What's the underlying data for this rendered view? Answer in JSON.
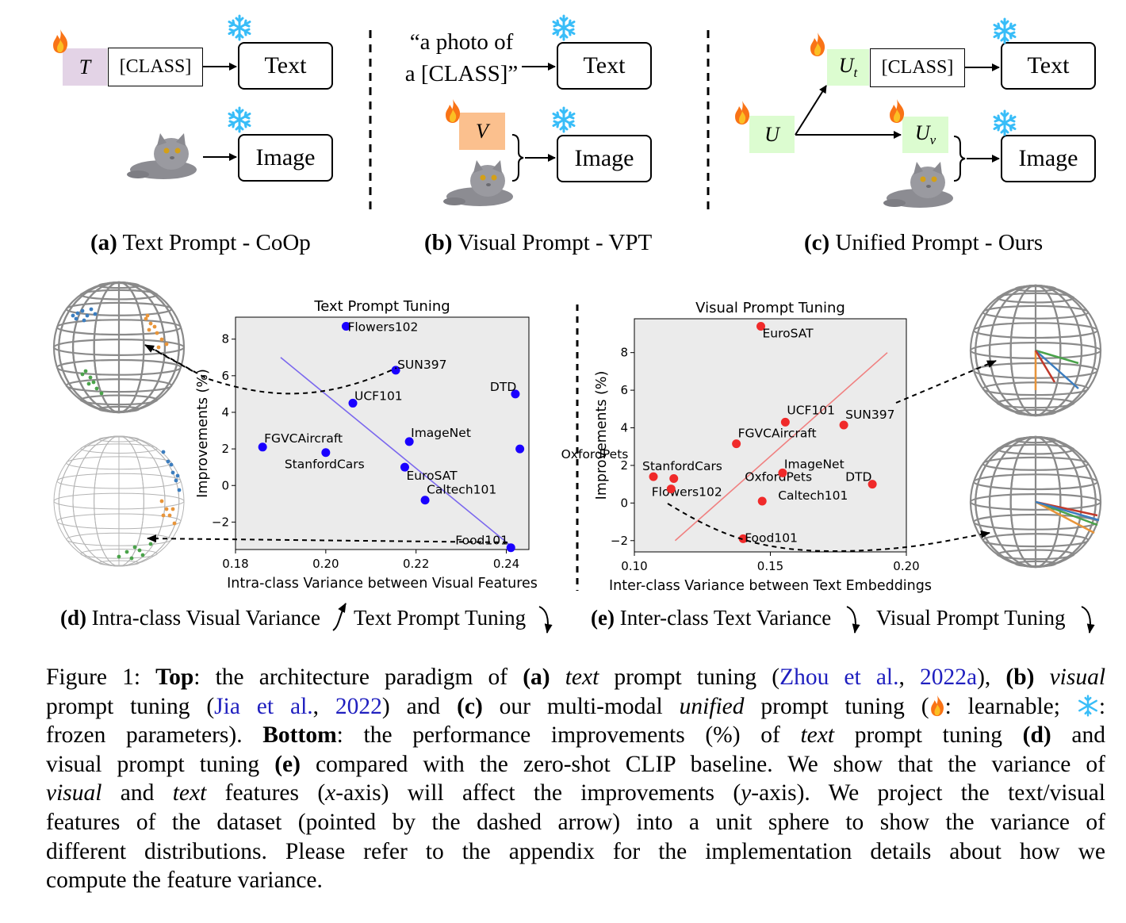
{
  "top": {
    "a": {
      "prompt": "T",
      "class": "[CLASS]",
      "text": "Text",
      "image": "Image",
      "label_bold": "(a)",
      "label": " Text Prompt - CoOp"
    },
    "b": {
      "quote_line1": "“a photo of",
      "quote_line2": "a [CLASS]”",
      "prompt": "V",
      "text": "Text",
      "image": "Image",
      "label_bold": "(b)",
      "label": " Visual Prompt - VPT"
    },
    "c": {
      "prompt_u": "U",
      "prompt_ut": "U",
      "prompt_ut_sub": "t",
      "prompt_uv": "U",
      "prompt_uv_sub": "v",
      "class": "[CLASS]",
      "text": "Text",
      "image": "Image",
      "label_bold": "(c)",
      "label": " Unified Prompt - Ours"
    }
  },
  "bottom": {
    "d_label_bold": "(d)",
    "d_label": " Intra-class Visual Variance",
    "d_tuning": "Text Prompt Tuning",
    "e_label_bold": "(e)",
    "e_label": " Inter-class Text Variance",
    "e_tuning": "Visual Prompt Tuning"
  },
  "colors": {
    "flame": "#f97316",
    "snow": "#38bdf8",
    "text_prompt": "#e3d3e6",
    "visual_prompt": "#fbc08e",
    "unified_prompt": "#dcfcd0",
    "plot_bg": "#ebebeb",
    "blue_series": "#1a00ff",
    "red_series": "#f02a2a",
    "blue_fit": "#7b68ee",
    "red_fit": "#f08080"
  },
  "chart_data": [
    {
      "type": "scatter",
      "title": "Text Prompt Tuning",
      "xlabel": "Intra-class Variance between Visual Features",
      "ylabel": "Improvements (%)",
      "xlim": [
        0.18,
        0.245
      ],
      "ylim": [
        -3.5,
        9.2
      ],
      "xticks": [
        "0.18",
        "0.20",
        "0.22",
        "0.24"
      ],
      "yticks": [
        "−2",
        "0",
        "2",
        "4",
        "6",
        "8"
      ],
      "xtick_values": [
        0.18,
        0.2,
        0.22,
        0.24
      ],
      "ytick_values": [
        -2,
        0,
        2,
        4,
        6,
        8
      ],
      "grid": false,
      "points": [
        {
          "name": "Flowers102",
          "x": 0.2045,
          "y": 8.7
        },
        {
          "name": "SUN397",
          "x": 0.2155,
          "y": 6.3
        },
        {
          "name": "UCF101",
          "x": 0.206,
          "y": 4.5
        },
        {
          "name": "DTD",
          "x": 0.242,
          "y": 5.0
        },
        {
          "name": "ImageNet",
          "x": 0.2185,
          "y": 2.4
        },
        {
          "name": "FGVCAircraft",
          "x": 0.186,
          "y": 2.1
        },
        {
          "name": "StanfordCars",
          "x": 0.2,
          "y": 1.8
        },
        {
          "name": "OxfordPets",
          "x": 0.243,
          "y": 2.0
        },
        {
          "name": "EuroSAT",
          "x": 0.2175,
          "y": 1.0
        },
        {
          "name": "Caltech101",
          "x": 0.222,
          "y": -0.8
        },
        {
          "name": "Food101",
          "x": 0.241,
          "y": -3.4
        }
      ],
      "fit_line": {
        "x": [
          0.19,
          0.241
        ],
        "y": [
          7.0,
          -3.3
        ]
      }
    },
    {
      "type": "scatter",
      "title": "Visual Prompt Tuning",
      "xlabel": "Inter-class Variance between Text Embeddings",
      "ylabel": "Improvements (%)",
      "xlim": [
        0.1,
        0.2
      ],
      "ylim": [
        -2.6,
        9.8
      ],
      "xticks": [
        "0.10",
        "0.15",
        "0.20"
      ],
      "yticks": [
        "−2",
        "0",
        "2",
        "4",
        "6",
        "8"
      ],
      "xtick_values": [
        0.1,
        0.15,
        0.2
      ],
      "ytick_values": [
        -2,
        0,
        2,
        4,
        6,
        8
      ],
      "grid": false,
      "points": [
        {
          "name": "EuroSAT",
          "x": 0.1465,
          "y": 9.4
        },
        {
          "name": "UCF101",
          "x": 0.1555,
          "y": 4.3
        },
        {
          "name": "SUN397",
          "x": 0.177,
          "y": 4.15
        },
        {
          "name": "FGVCAircraft",
          "x": 0.1375,
          "y": 3.15
        },
        {
          "name": "StanfordCars",
          "x": 0.107,
          "y": 1.4
        },
        {
          "name": "Flowers102",
          "x": 0.1145,
          "y": 1.3
        },
        {
          "name": "OxfordPets",
          "x": 0.1135,
          "y": 0.75
        },
        {
          "name": "ImageNet",
          "x": 0.1545,
          "y": 1.6
        },
        {
          "name": "DTD",
          "x": 0.1875,
          "y": 1.0
        },
        {
          "name": "Caltech101",
          "x": 0.147,
          "y": 0.1
        },
        {
          "name": "Food101",
          "x": 0.14,
          "y": -1.9
        }
      ],
      "fit_line": {
        "x": [
          0.115,
          0.193
        ],
        "y": [
          -2.0,
          8.0
        ]
      }
    }
  ],
  "caption": {
    "l1": [
      {
        "t": "Figure 1: "
      },
      {
        "t": "Top",
        "b": true
      },
      {
        "t": ": the architecture paradigm of "
      },
      {
        "t": "(a)",
        "b": true
      },
      {
        "t": " "
      },
      {
        "t": "text",
        "i": true
      },
      {
        "t": " prompt tuning ("
      },
      {
        "t": "Zhou et al.",
        "link": true
      },
      {
        "t": ", "
      },
      {
        "t": "2022a",
        "link": true
      },
      {
        "t": "), "
      },
      {
        "t": "(b)",
        "b": true
      },
      {
        "t": " "
      },
      {
        "t": "visual",
        "i": true
      }
    ],
    "l2": [
      {
        "t": "prompt tuning ("
      },
      {
        "t": "Jia et al.",
        "link": true
      },
      {
        "t": ", "
      },
      {
        "t": "2022",
        "link": true
      },
      {
        "t": ") and "
      },
      {
        "t": "(c)",
        "b": true
      },
      {
        "t": " our multi-modal "
      },
      {
        "t": "unified",
        "i": true
      },
      {
        "t": " prompt tuning ("
      },
      {
        "icon": "flame"
      },
      {
        "t": ": learnable; "
      },
      {
        "icon": "snow"
      },
      {
        "t": ":"
      }
    ],
    "l3": [
      {
        "t": "frozen parameters). "
      },
      {
        "t": "Bottom",
        "b": true
      },
      {
        "t": ": the performance improvements (%) of "
      },
      {
        "t": "text",
        "i": true
      },
      {
        "t": " prompt tuning "
      },
      {
        "t": "(d)",
        "b": true
      },
      {
        "t": " and"
      }
    ],
    "l4": [
      {
        "t": "visual prompt tuning "
      },
      {
        "t": "(e)",
        "b": true
      },
      {
        "t": " compared with the zero-shot CLIP baseline. We show that the variance of"
      }
    ],
    "l5": [
      {
        "t": "visual",
        "i": true
      },
      {
        "t": " and "
      },
      {
        "t": "text",
        "i": true
      },
      {
        "t": " features ("
      },
      {
        "t": "x",
        "i": true
      },
      {
        "t": "-axis) will affect the improvements ("
      },
      {
        "t": "y",
        "i": true
      },
      {
        "t": "-axis).  We project the text/visual"
      }
    ],
    "l6": [
      {
        "t": "features of the dataset (pointed by the dashed arrow) into a unit sphere to show the variance of"
      }
    ],
    "l7": [
      {
        "t": "different distributions.  Please refer to the appendix for the implementation details about how we"
      }
    ],
    "l8": [
      {
        "t": "compute the feature variance."
      }
    ]
  }
}
